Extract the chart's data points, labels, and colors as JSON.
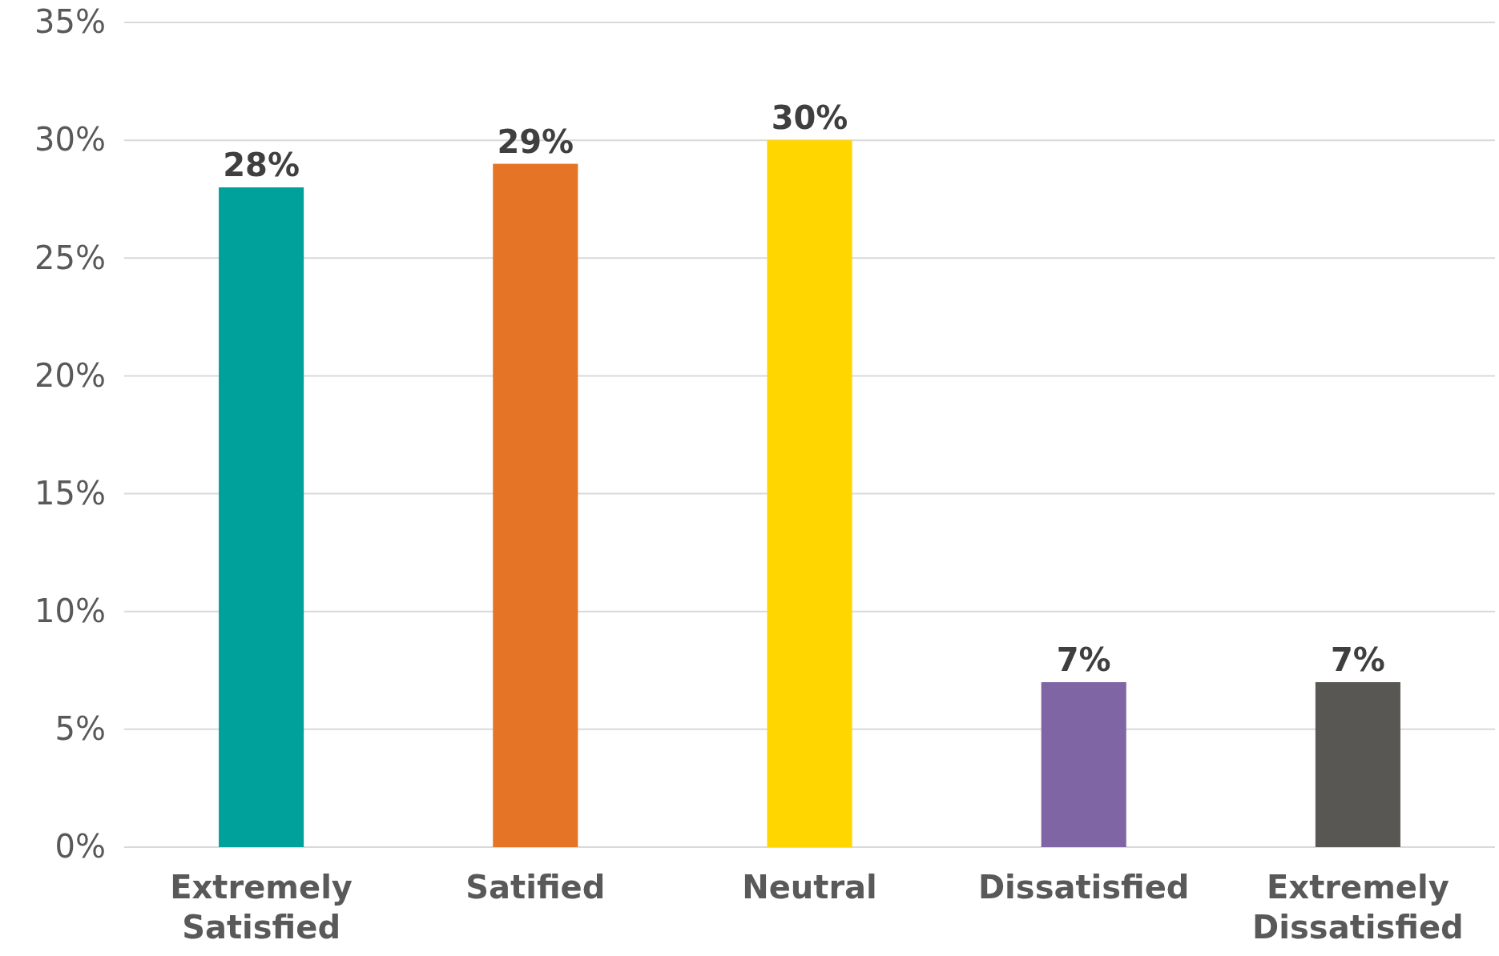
{
  "chart_data": {
    "type": "bar",
    "categories": [
      "Extremely Satisfied",
      "Satified",
      "Neutral",
      "Dissatisfied",
      "Extremely Dissatisfied"
    ],
    "values": [
      28,
      29,
      30,
      7,
      7
    ],
    "colors": [
      "#00a19a",
      "#e57426",
      "#ffd600",
      "#8065a5",
      "#585754"
    ],
    "ylim": [
      0,
      35
    ],
    "yticks": [
      {
        "value": 0,
        "label": "0%"
      },
      {
        "value": 5,
        "label": "5%"
      },
      {
        "value": 10,
        "label": "10%"
      },
      {
        "value": 15,
        "label": "15%"
      },
      {
        "value": 20,
        "label": "20%"
      },
      {
        "value": 25,
        "label": "25%"
      },
      {
        "value": 30,
        "label": "30%"
      },
      {
        "value": 35,
        "label": "35%"
      }
    ],
    "value_labels": [
      "28%",
      "29%",
      "30%",
      "7%",
      "7%"
    ],
    "grid": "y"
  }
}
